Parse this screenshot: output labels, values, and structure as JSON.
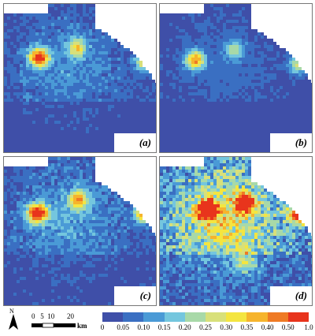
{
  "panels": [
    {
      "id": "a",
      "label": "(a)",
      "intensity": 0.28,
      "hotspots": [
        [
          0.22,
          0.35,
          0.9
        ],
        [
          0.47,
          0.28,
          0.5
        ],
        [
          0.92,
          0.38,
          0.6
        ]
      ]
    },
    {
      "id": "b",
      "label": "(b)",
      "intensity": 0.18,
      "hotspots": [
        [
          0.22,
          0.37,
          0.7
        ],
        [
          0.48,
          0.3,
          0.35
        ],
        [
          0.9,
          0.4,
          0.45
        ]
      ]
    },
    {
      "id": "c",
      "label": "(c)",
      "intensity": 0.33,
      "hotspots": [
        [
          0.21,
          0.37,
          1.0
        ],
        [
          0.48,
          0.28,
          0.6
        ],
        [
          0.91,
          0.37,
          0.8
        ]
      ]
    },
    {
      "id": "d",
      "label": "(d)",
      "intensity": 0.75,
      "hotspots": [
        [
          0.3,
          0.35,
          1.0
        ],
        [
          0.55,
          0.3,
          0.9
        ],
        [
          0.9,
          0.38,
          0.8
        ],
        [
          0.55,
          0.7,
          0.6
        ]
      ]
    }
  ],
  "legend": {
    "north_label": "N",
    "scale_numbers": [
      "0",
      "5",
      "10",
      "20"
    ],
    "scale_unit": "km",
    "colorbar_ticks": [
      "0",
      "0.05",
      "0.10",
      "0.15",
      "0.20",
      "0.25",
      "0.30",
      "0.35",
      "0.40",
      "0.50",
      "1.0"
    ],
    "colorbar_colors": [
      "#3f4fa8",
      "#3a6fc2",
      "#4a9ad6",
      "#74c6de",
      "#a8d9a8",
      "#d8e07a",
      "#f4e540",
      "#f6b42c",
      "#ef7a24",
      "#e8341c"
    ]
  },
  "colors": {
    "background_class": "#3e50a6",
    "water": "#ffffff"
  }
}
